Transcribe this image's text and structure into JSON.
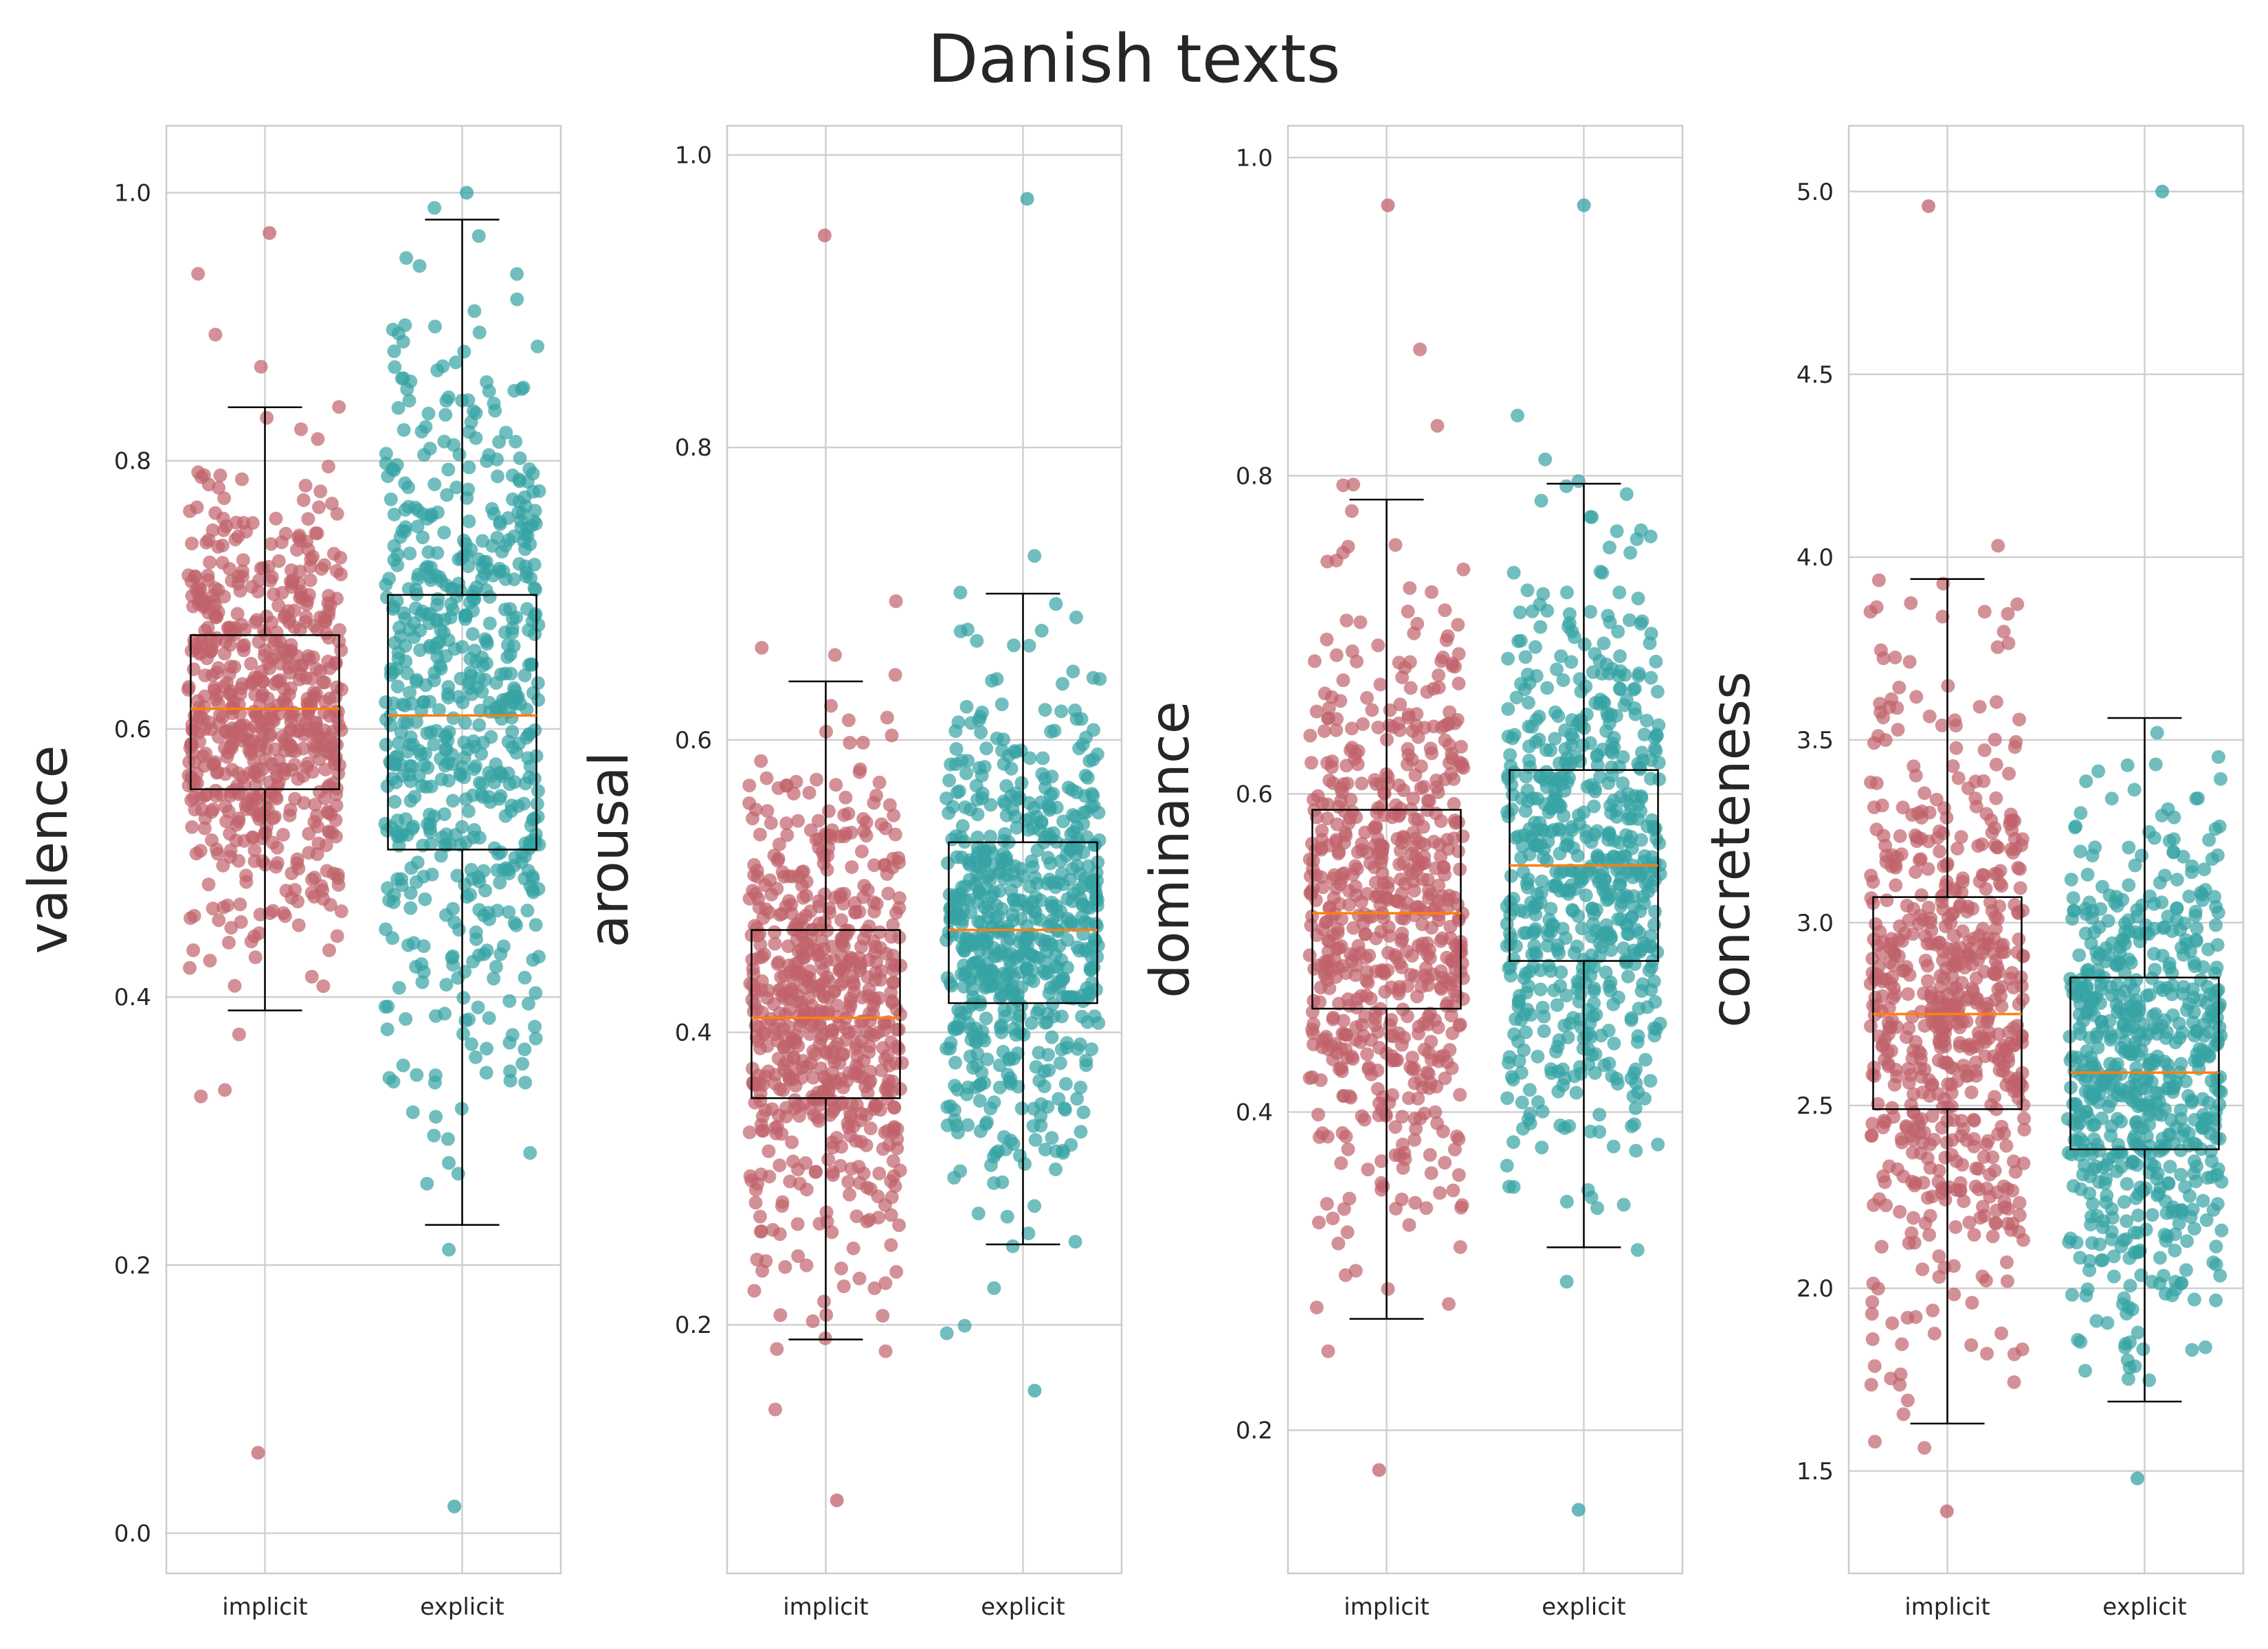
{
  "title": "Danish texts",
  "colors": {
    "implicit": "#c0626b",
    "explicit": "#36a2a4",
    "median": "#ff7f0e",
    "grid": "#d0d0d0",
    "frame": "#cccccc",
    "box": "#000000"
  },
  "chart_data": [
    {
      "type": "box+strip",
      "ylabel": "valence",
      "categories": [
        "implicit",
        "explicit"
      ],
      "ylim": [
        -0.03,
        1.05
      ],
      "yticks": [
        0.0,
        0.2,
        0.4,
        0.6,
        0.8,
        1.0
      ],
      "ytick_labels": [
        "0.0",
        "0.2",
        "0.4",
        "0.6",
        "0.8",
        "1.0"
      ],
      "series": [
        {
          "category": "implicit",
          "whislo": 0.39,
          "q1": 0.555,
          "median": 0.615,
          "q3": 0.67,
          "whishi": 0.84,
          "min": 0.06,
          "max": 0.97
        },
        {
          "category": "explicit",
          "whislo": 0.23,
          "q1": 0.51,
          "median": 0.61,
          "q3": 0.7,
          "whishi": 0.98,
          "min": 0.02,
          "max": 1.0
        }
      ]
    },
    {
      "type": "box+strip",
      "ylabel": "arousal",
      "categories": [
        "implicit",
        "explicit"
      ],
      "ylim": [
        0.03,
        1.02
      ],
      "yticks": [
        0.2,
        0.4,
        0.6,
        0.8,
        1.0
      ],
      "ytick_labels": [
        "0.2",
        "0.4",
        "0.6",
        "0.8",
        "1.0"
      ],
      "series": [
        {
          "category": "implicit",
          "whislo": 0.19,
          "q1": 0.355,
          "median": 0.41,
          "q3": 0.47,
          "whishi": 0.64,
          "min": 0.08,
          "max": 0.945
        },
        {
          "category": "explicit",
          "whislo": 0.255,
          "q1": 0.42,
          "median": 0.47,
          "q3": 0.53,
          "whishi": 0.7,
          "min": 0.155,
          "max": 0.97
        }
      ]
    },
    {
      "type": "box+strip",
      "ylabel": "dominance",
      "categories": [
        "implicit",
        "explicit"
      ],
      "ylim": [
        0.11,
        1.02
      ],
      "yticks": [
        0.2,
        0.4,
        0.6,
        0.8,
        1.0
      ],
      "ytick_labels": [
        "0.2",
        "0.4",
        "0.6",
        "0.8",
        "1.0"
      ],
      "series": [
        {
          "category": "implicit",
          "whislo": 0.27,
          "q1": 0.465,
          "median": 0.525,
          "q3": 0.59,
          "whishi": 0.785,
          "min": 0.175,
          "max": 0.97
        },
        {
          "category": "explicit",
          "whislo": 0.315,
          "q1": 0.495,
          "median": 0.555,
          "q3": 0.615,
          "whishi": 0.795,
          "min": 0.15,
          "max": 0.97
        }
      ]
    },
    {
      "type": "box+strip",
      "ylabel": "concreteness",
      "categories": [
        "implicit",
        "explicit"
      ],
      "ylim": [
        1.22,
        5.18
      ],
      "yticks": [
        1.5,
        2.0,
        2.5,
        3.0,
        3.5,
        4.0,
        4.5,
        5.0
      ],
      "ytick_labels": [
        "1.5",
        "2.0",
        "2.5",
        "3.0",
        "3.5",
        "4.0",
        "4.5",
        "5.0"
      ],
      "series": [
        {
          "category": "implicit",
          "whislo": 1.63,
          "q1": 2.49,
          "median": 2.75,
          "q3": 3.07,
          "whishi": 3.94,
          "min": 1.39,
          "max": 4.96
        },
        {
          "category": "explicit",
          "whislo": 1.69,
          "q1": 2.38,
          "median": 2.59,
          "q3": 2.85,
          "whishi": 3.56,
          "min": 1.48,
          "max": 5.0
        }
      ]
    }
  ]
}
